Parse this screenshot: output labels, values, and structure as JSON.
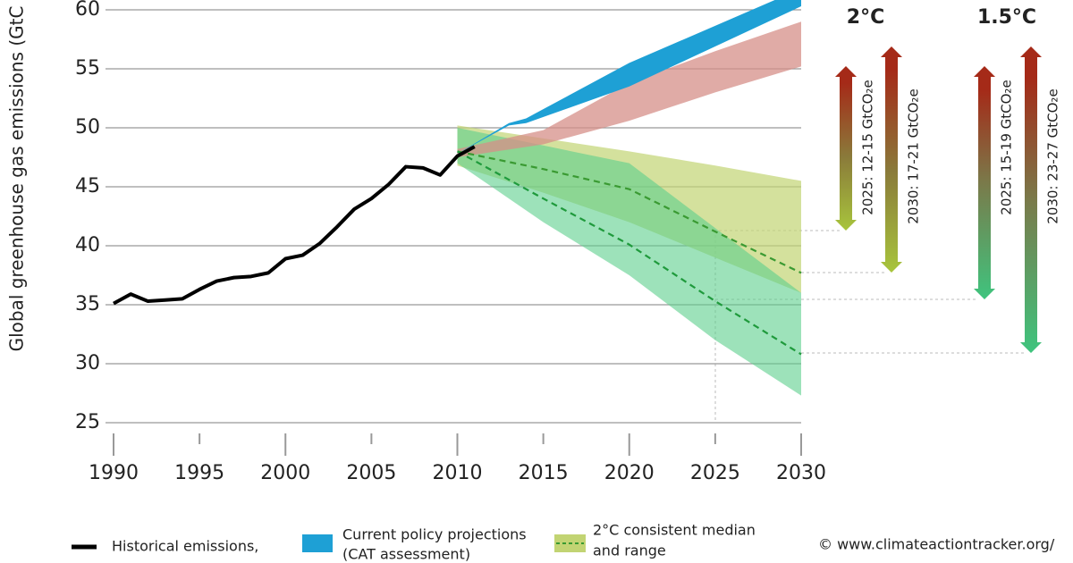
{
  "chart_data": {
    "type": "line",
    "ylabel": "Global greenhouse gas emissions (GtC",
    "xlim": [
      1990,
      2030
    ],
    "ylim": [
      25,
      60
    ],
    "xticks": [
      1990,
      1995,
      2000,
      2005,
      2010,
      2015,
      2020,
      2025,
      2030
    ],
    "yticks": [
      25,
      30,
      35,
      40,
      45,
      50,
      55,
      60
    ],
    "grid": true,
    "series": [
      {
        "name": [
          "Historical emissions,"
        ],
        "color": "#000000",
        "kind": "line",
        "x": [
          1990,
          1991,
          1992,
          1993,
          1994,
          1995,
          1996,
          1997,
          1998,
          1999,
          2000,
          2001,
          2002,
          2003,
          2004,
          2005,
          2006,
          2007,
          2008,
          2009,
          2010,
          2011
        ],
        "values": [
          35.1,
          35.9,
          35.3,
          35.4,
          35.5,
          36.3,
          37.0,
          37.3,
          37.4,
          37.7,
          38.9,
          39.2,
          40.2,
          41.6,
          43.1,
          44.0,
          45.2,
          46.7,
          46.6,
          46.0,
          47.6,
          48.4
        ]
      },
      {
        "name": [
          "Current policy projections",
          "(CAT assessment)"
        ],
        "color": "#1ea0d5",
        "kind": "band",
        "x": [
          2010,
          2013,
          2014,
          2020,
          2030
        ],
        "lower": [
          47.8,
          50.2,
          50.4,
          53.5,
          60.3
        ],
        "upper": [
          47.8,
          50.4,
          50.8,
          55.5,
          61.8
        ]
      },
      {
        "color": "#d58f88",
        "kind": "band",
        "x": [
          2010,
          2015,
          2020,
          2025,
          2030
        ],
        "lower": [
          47.5,
          48.6,
          50.6,
          53.0,
          55.2
        ],
        "upper": [
          48.2,
          49.8,
          53.8,
          56.5,
          59.0
        ]
      },
      {
        "name": [
          "2°C consistent median",
          "and range"
        ],
        "color": "#c2d473",
        "median_color": "#3a9a32",
        "kind": "band",
        "x": [
          2010,
          2015,
          2020,
          2025,
          2030
        ],
        "lower": [
          46.8,
          44.5,
          42.0,
          39.0,
          36.0
        ],
        "upper": [
          50.2,
          49.1,
          48.0,
          46.8,
          45.5
        ],
        "values": [
          48.0,
          46.5,
          44.8,
          41.2,
          37.7
        ]
      },
      {
        "color": "#5ccf8c",
        "median_color": "#1f9a3c",
        "kind": "band",
        "x": [
          2010,
          2015,
          2020,
          2025,
          2030
        ],
        "lower": [
          47.0,
          42.0,
          37.5,
          32.0,
          27.3
        ],
        "upper": [
          50.0,
          48.5,
          47.0,
          41.5,
          36.0
        ],
        "values": [
          48.0,
          44.0,
          40.1,
          35.3,
          30.8
        ]
      }
    ],
    "targets": [
      {
        "title": "2°C",
        "labels": [
          "2025: 12-15 GtCO₂e",
          "2030: 17-21 GtCO₂e"
        ]
      },
      {
        "title": "1.5°C",
        "labels": [
          "2025: 15-19 GtCO₂e",
          "2030: 23-27 GtCO₂e"
        ]
      }
    ],
    "source": "© www.climateactiontracker.org/"
  }
}
